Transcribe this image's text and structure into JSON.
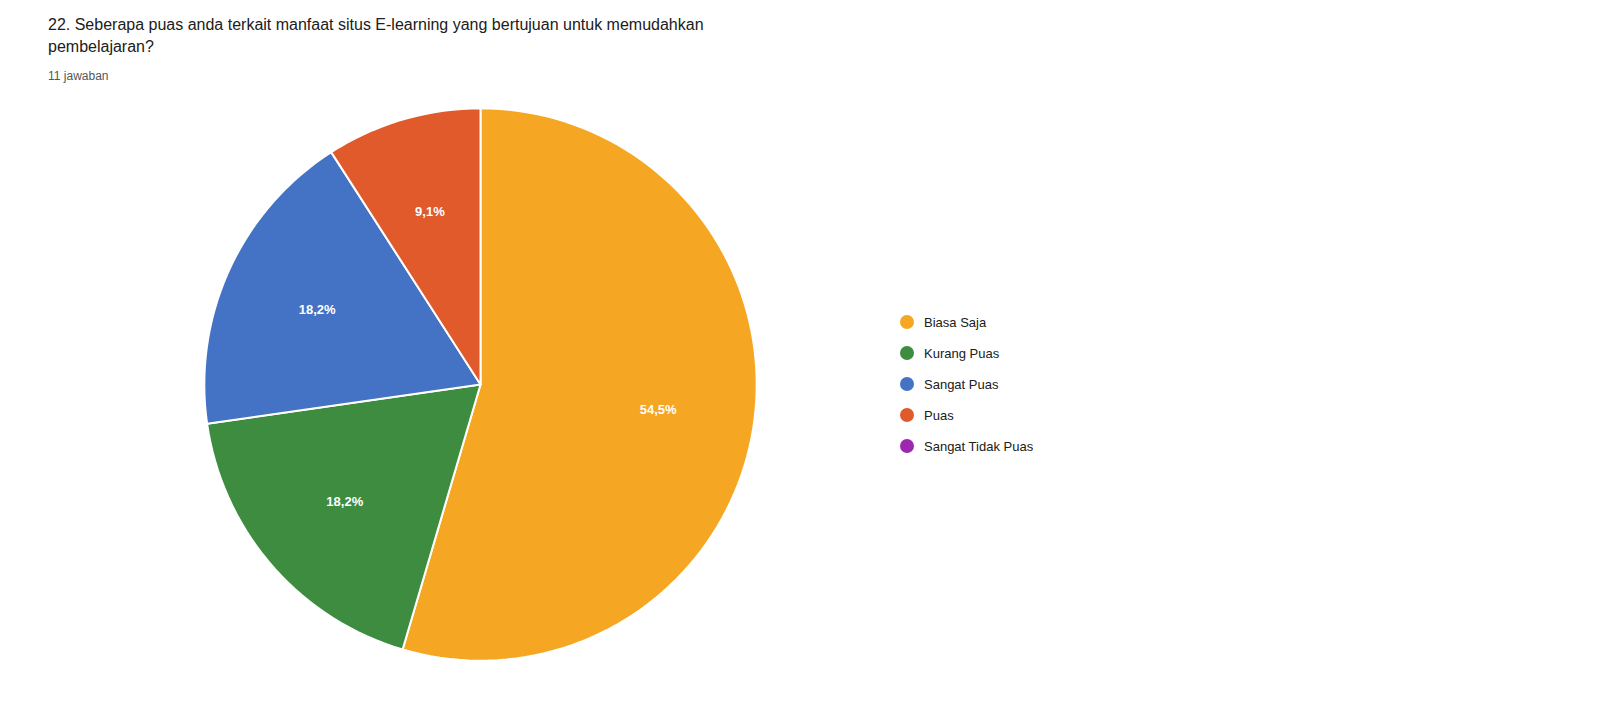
{
  "chart_data": {
    "type": "pie",
    "title": "22.  Seberapa puas anda terkait manfaat situs E-learning yang bertujuan untuk memudahkan\npembelajaran?",
    "subtitle": "11 jawaban",
    "categories": [
      "Biasa Saja",
      "Kurang Puas",
      "Sangat Puas",
      "Puas",
      "Sangat Tidak Puas"
    ],
    "values": [
      54.55,
      18.18,
      18.18,
      9.09,
      0.0
    ],
    "value_labels": [
      "54,5%",
      "18,2%",
      "18,2%",
      "9,1%",
      null
    ],
    "colors": [
      "#f5a623",
      "#3d8c40",
      "#4472c4",
      "#e05a2b",
      "#9c27b0"
    ],
    "data_labels": true,
    "legend": "right"
  }
}
